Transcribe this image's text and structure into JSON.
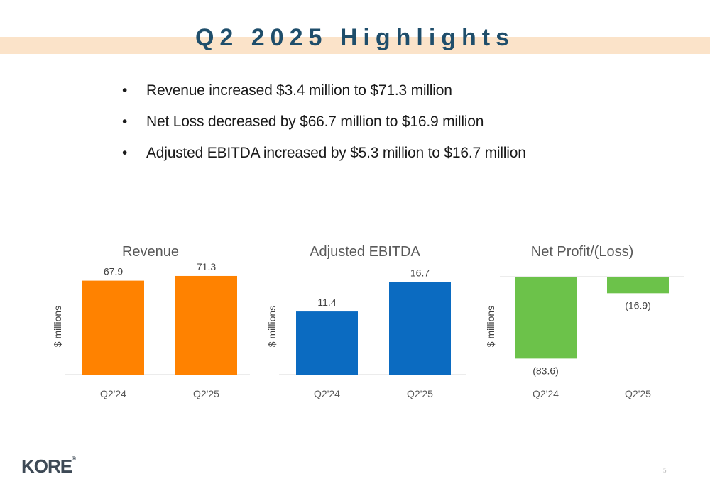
{
  "slide": {
    "title": "Q2 2025 Highlights",
    "bullets": [
      "Revenue increased $3.4 million to $71.3 million",
      "Net Loss decreased by $66.7 million to $16.9 million",
      "Adjusted EBITDA increased by $5.3 million to $16.7 million"
    ],
    "bullet_glyph": "•",
    "logo_text": "KORE",
    "logo_mark": "®",
    "page_number": "5"
  },
  "colors": {
    "title": "#1f4e6b",
    "title_band": "#fbe3c9",
    "revenue": "#ff8200",
    "ebitda": "#0b6bc1",
    "net": "#6cc24a"
  },
  "chart_data": [
    {
      "type": "bar",
      "title": "Revenue",
      "ylabel": "$ millions",
      "categories": [
        "Q2'24",
        "Q2'25"
      ],
      "values": [
        67.9,
        71.3
      ],
      "value_labels": [
        "67.9",
        "71.3"
      ],
      "ylim": [
        0,
        80
      ],
      "grid": false,
      "color": "#ff8200"
    },
    {
      "type": "bar",
      "title": "Adjusted EBITDA",
      "ylabel": "$ millions",
      "categories": [
        "Q2'24",
        "Q2'25"
      ],
      "values": [
        11.4,
        16.7
      ],
      "value_labels": [
        "11.4",
        "16.7"
      ],
      "ylim": [
        0,
        20
      ],
      "grid": false,
      "color": "#0b6bc1"
    },
    {
      "type": "bar",
      "title": "Net Profit/(Loss)",
      "ylabel": "$ millions",
      "categories": [
        "Q2'24",
        "Q2'25"
      ],
      "values": [
        -83.6,
        -16.9
      ],
      "value_labels": [
        "(83.6)",
        "(16.9)"
      ],
      "ylim": [
        -100,
        0
      ],
      "grid": false,
      "color": "#6cc24a"
    }
  ]
}
